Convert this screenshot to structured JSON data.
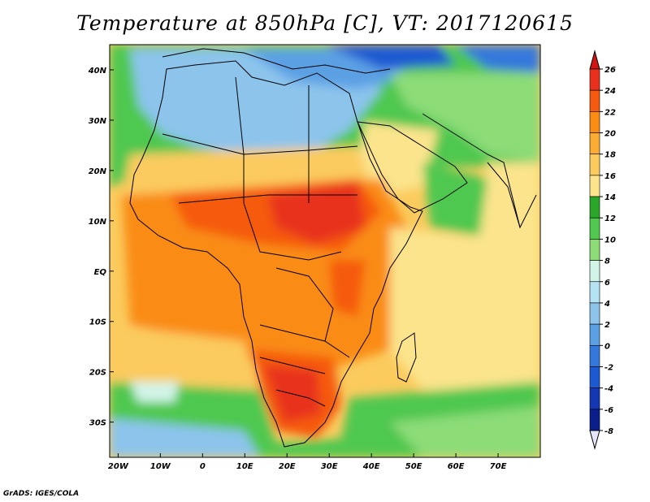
{
  "title": "Temperature at 850hPa [C], VT: 2017120615",
  "credit": "GrADS: IGES/COLA",
  "map": {
    "region": "Africa",
    "lon_range": [
      -22,
      80
    ],
    "lat_range": [
      -37,
      45
    ],
    "lat_labels": [
      "40N",
      "30N",
      "20N",
      "10N",
      "EQ",
      "10S",
      "20S",
      "30S"
    ],
    "lat_values": [
      40,
      30,
      20,
      10,
      0,
      -10,
      -20,
      -30
    ],
    "lon_labels": [
      "20W",
      "10W",
      "0",
      "10E",
      "20E",
      "30E",
      "40E",
      "50E",
      "60E",
      "70E"
    ],
    "lon_values": [
      -20,
      -10,
      0,
      10,
      20,
      30,
      40,
      50,
      60,
      70
    ]
  },
  "colorbar": {
    "labels": [
      "26",
      "24",
      "22",
      "20",
      "18",
      "16",
      "14",
      "12",
      "10",
      "8",
      "6",
      "4",
      "2",
      "0",
      "-2",
      "-4",
      "-6",
      "-8"
    ],
    "colors": [
      "#e8301c",
      "#f55a10",
      "#fa8c14",
      "#fbac32",
      "#fbcb5e",
      "#fbe48c",
      "#2aa62a",
      "#50c850",
      "#8cdc78",
      "#d2f4e8",
      "#b4e4f4",
      "#8cc4ec",
      "#5ca0e4",
      "#3478dc",
      "#1c5ad2",
      "#1438b4",
      "#0c1e8c"
    ],
    "top_color": "#d21414",
    "bottom_color": "#e6e6fa"
  }
}
